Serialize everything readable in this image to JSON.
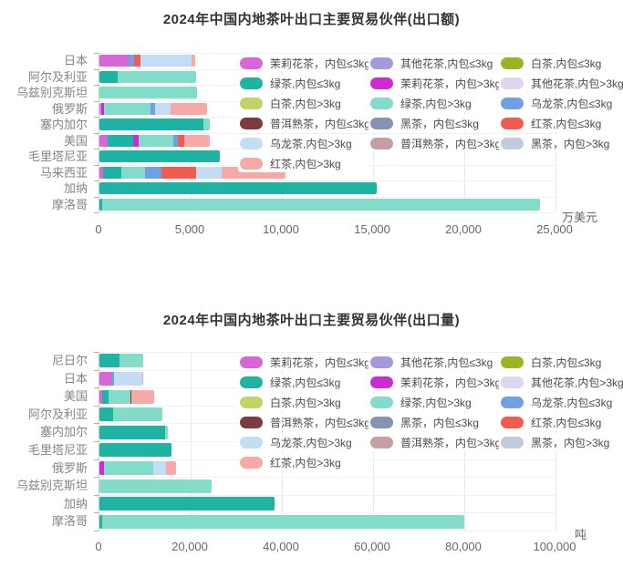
{
  "page": {
    "background": "#ffffff"
  },
  "chart_data": [
    {
      "type": "bar",
      "orientation": "horizontal-stacked",
      "title": "2024年中国内地茶叶出口主要贸易伙伴(出口额)",
      "unit": "万美元",
      "x_max": 25000,
      "x_ticks": [
        "0",
        "5,000",
        "10,000",
        "15,000",
        "20,000",
        "25,000"
      ],
      "grid": true,
      "legend_position": "top-right",
      "categories": [
        "日本",
        "阿尔及利亚",
        "乌兹别克斯坦",
        "俄罗斯",
        "塞内加尔",
        "美国",
        "毛里塔尼亚",
        "马来西亚",
        "加纳",
        "摩洛哥"
      ],
      "series": [
        {
          "name": "茉莉花茶，内包≤3kg",
          "color": "#d966d9",
          "values": [
            1600,
            0,
            0,
            0,
            0,
            430,
            0,
            200,
            0,
            0
          ]
        },
        {
          "name": "其他花茶,内包≤3kg",
          "color": "#a797db",
          "values": [
            0,
            0,
            0,
            100,
            0,
            0,
            0,
            0,
            0,
            0
          ]
        },
        {
          "name": "白茶,内包≤3kg",
          "color": "#9eb322",
          "values": [
            0,
            0,
            0,
            0,
            0,
            0,
            0,
            0,
            0,
            0
          ]
        },
        {
          "name": "绿茶,内包≤3kg",
          "color": "#1fb3a3",
          "values": [
            0,
            1000,
            0,
            0,
            5700,
            1400,
            6600,
            1000,
            15200,
            150
          ]
        },
        {
          "name": "茉莉花茶，内包>3kg",
          "color": "#cc2bd1",
          "values": [
            0,
            0,
            0,
            150,
            0,
            330,
            0,
            0,
            0,
            0
          ]
        },
        {
          "name": "其他花茶,内包>3kg",
          "color": "#dfd5f1",
          "values": [
            0,
            0,
            0,
            0,
            0,
            0,
            0,
            0,
            0,
            0
          ]
        },
        {
          "name": "白茶,内包>3kg",
          "color": "#c0d467",
          "values": [
            0,
            0,
            0,
            0,
            0,
            0,
            0,
            0,
            0,
            0
          ]
        },
        {
          "name": "绿茶,内包>3kg",
          "color": "#82dcc9",
          "values": [
            0,
            4300,
            5350,
            2550,
            330,
            1900,
            0,
            1300,
            0,
            24000
          ]
        },
        {
          "name": "乌龙茶,内包≤3kg",
          "color": "#6fa0e2",
          "values": [
            300,
            0,
            0,
            250,
            0,
            250,
            0,
            900,
            0,
            0
          ]
        },
        {
          "name": "普洱熟茶，内包≤3kg",
          "color": "#7d3a40",
          "values": [
            0,
            0,
            0,
            0,
            0,
            0,
            0,
            0,
            0,
            0
          ]
        },
        {
          "name": "黑茶，内包≤3kg",
          "color": "#8494b2",
          "values": [
            0,
            0,
            0,
            0,
            0,
            0,
            0,
            0,
            0,
            0
          ]
        },
        {
          "name": "红茶,内包≤3kg",
          "color": "#f25b50",
          "values": [
            370,
            0,
            0,
            0,
            0,
            330,
            0,
            1900,
            0,
            0
          ]
        },
        {
          "name": "乌龙茶,内包>3kg",
          "color": "#c3ddf4",
          "values": [
            2800,
            0,
            0,
            850,
            0,
            0,
            0,
            1400,
            0,
            0
          ]
        },
        {
          "name": "普洱熟茶，内包>3kg",
          "color": "#c49ea2",
          "values": [
            0,
            0,
            0,
            0,
            0,
            0,
            0,
            0,
            0,
            0
          ]
        },
        {
          "name": "黑茶，内包>3kg",
          "color": "#c2cadf",
          "values": [
            0,
            0,
            0,
            0,
            0,
            0,
            0,
            0,
            0,
            0
          ]
        },
        {
          "name": "红茶,内包>3kg",
          "color": "#f6a9a7",
          "values": [
            180,
            0,
            0,
            2000,
            0,
            1400,
            0,
            3500,
            0,
            0
          ]
        }
      ]
    },
    {
      "type": "bar",
      "orientation": "horizontal-stacked",
      "title": "2024年中国内地茶叶出口主要贸易伙伴(出口量)",
      "unit": "吨",
      "x_max": 100000,
      "x_ticks": [
        "0",
        "20,000",
        "40,000",
        "60,000",
        "80,000",
        "100,000"
      ],
      "grid": true,
      "legend_position": "top-right",
      "categories": [
        "尼日尔",
        "日本",
        "美国",
        "阿尔及利亚",
        "塞内加尔",
        "毛里塔尼亚",
        "俄罗斯",
        "乌兹别克斯坦",
        "加纳",
        "摩洛哥"
      ],
      "series": [
        {
          "name": "茉莉花茶，内包≤3kg",
          "color": "#d966d9",
          "values": [
            0,
            2500,
            500,
            0,
            0,
            0,
            0,
            0,
            0,
            0
          ]
        },
        {
          "name": "其他花茶,内包≤3kg",
          "color": "#a797db",
          "values": [
            0,
            0,
            0,
            0,
            0,
            0,
            0,
            0,
            0,
            0
          ]
        },
        {
          "name": "白茶,内包≤3kg",
          "color": "#9eb322",
          "values": [
            0,
            0,
            0,
            0,
            0,
            0,
            0,
            0,
            0,
            0
          ]
        },
        {
          "name": "绿茶,内包≤3kg",
          "color": "#1fb3a3",
          "values": [
            4300,
            0,
            1400,
            3000,
            14300,
            15700,
            0,
            0,
            38300,
            600
          ]
        },
        {
          "name": "茉莉花茶，内包>3kg",
          "color": "#cc2bd1",
          "values": [
            0,
            0,
            0,
            0,
            0,
            0,
            1000,
            0,
            0,
            0
          ]
        },
        {
          "name": "其他花茶,内包>3kg",
          "color": "#dfd5f1",
          "values": [
            0,
            0,
            0,
            0,
            0,
            0,
            0,
            0,
            0,
            0
          ]
        },
        {
          "name": "白茶,内包>3kg",
          "color": "#c0d467",
          "values": [
            0,
            0,
            0,
            0,
            0,
            0,
            0,
            0,
            0,
            0
          ]
        },
        {
          "name": "绿茶,内包>3kg",
          "color": "#82dcc9",
          "values": [
            5300,
            0,
            4800,
            10700,
            700,
            0,
            10800,
            24500,
            0,
            79400
          ]
        },
        {
          "name": "乌龙茶,内包≤3kg",
          "color": "#6fa0e2",
          "values": [
            0,
            600,
            0,
            0,
            0,
            0,
            0,
            0,
            0,
            0
          ]
        },
        {
          "name": "普洱熟茶，内包≤3kg",
          "color": "#7d3a40",
          "values": [
            0,
            0,
            300,
            0,
            0,
            0,
            0,
            0,
            0,
            0
          ]
        },
        {
          "name": "黑茶，内包≤3kg",
          "color": "#8494b2",
          "values": [
            0,
            0,
            0,
            0,
            0,
            0,
            0,
            0,
            0,
            0
          ]
        },
        {
          "name": "红茶,内包≤3kg",
          "color": "#f25b50",
          "values": [
            0,
            0,
            0,
            0,
            0,
            0,
            0,
            0,
            0,
            0
          ]
        },
        {
          "name": "乌龙茶,内包>3kg",
          "color": "#c3ddf4",
          "values": [
            0,
            6200,
            0,
            0,
            0,
            0,
            2800,
            0,
            0,
            0
          ]
        },
        {
          "name": "普洱熟茶，内包>3kg",
          "color": "#c49ea2",
          "values": [
            0,
            0,
            0,
            0,
            0,
            0,
            0,
            0,
            0,
            0
          ]
        },
        {
          "name": "黑茶，内包>3kg",
          "color": "#c2cadf",
          "values": [
            0,
            0,
            0,
            0,
            0,
            0,
            0,
            0,
            0,
            0
          ]
        },
        {
          "name": "红茶,内包>3kg",
          "color": "#f6a9a7",
          "values": [
            0,
            300,
            4900,
            0,
            0,
            0,
            2200,
            0,
            0,
            0
          ]
        }
      ]
    }
  ]
}
